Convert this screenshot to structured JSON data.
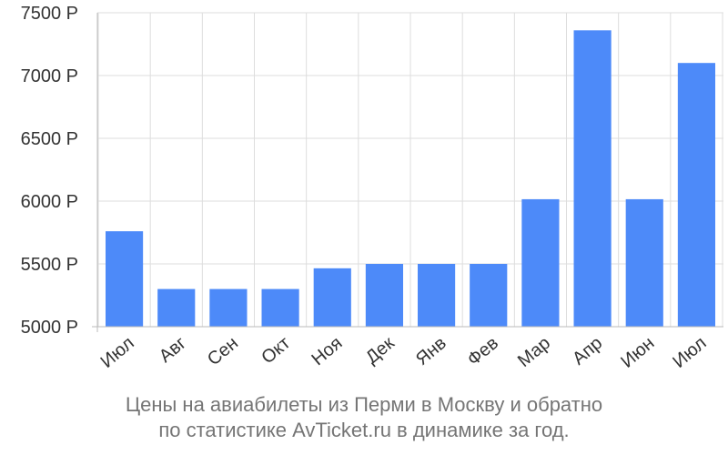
{
  "chart_data": {
    "type": "bar",
    "categories": [
      "Июл",
      "Авг",
      "Сен",
      "Окт",
      "Ноя",
      "Дек",
      "Янв",
      "Фев",
      "Мар",
      "Апр",
      "Июн",
      "Июл"
    ],
    "values": [
      5760,
      5300,
      5300,
      5300,
      5465,
      5500,
      5500,
      5500,
      6015,
      7360,
      6015,
      7100
    ],
    "y_ticks": [
      "5000 Р",
      "5500 Р",
      "6000 Р",
      "6500 Р",
      "7000 Р",
      "7500 Р"
    ],
    "y_tick_values": [
      5000,
      5500,
      6000,
      6500,
      7000,
      7500
    ],
    "ylim": [
      5000,
      7500
    ],
    "grid": true,
    "colors": {
      "bar": "#4d8af9",
      "grid": "#dddddd",
      "axis": "#bbbbbb",
      "tick_text": "#333333"
    }
  },
  "caption": {
    "line1": "Цены на авиабилеты из Перми в Москву и обратно",
    "line2": "по статистике AvTicket.ru в динамике за год."
  }
}
